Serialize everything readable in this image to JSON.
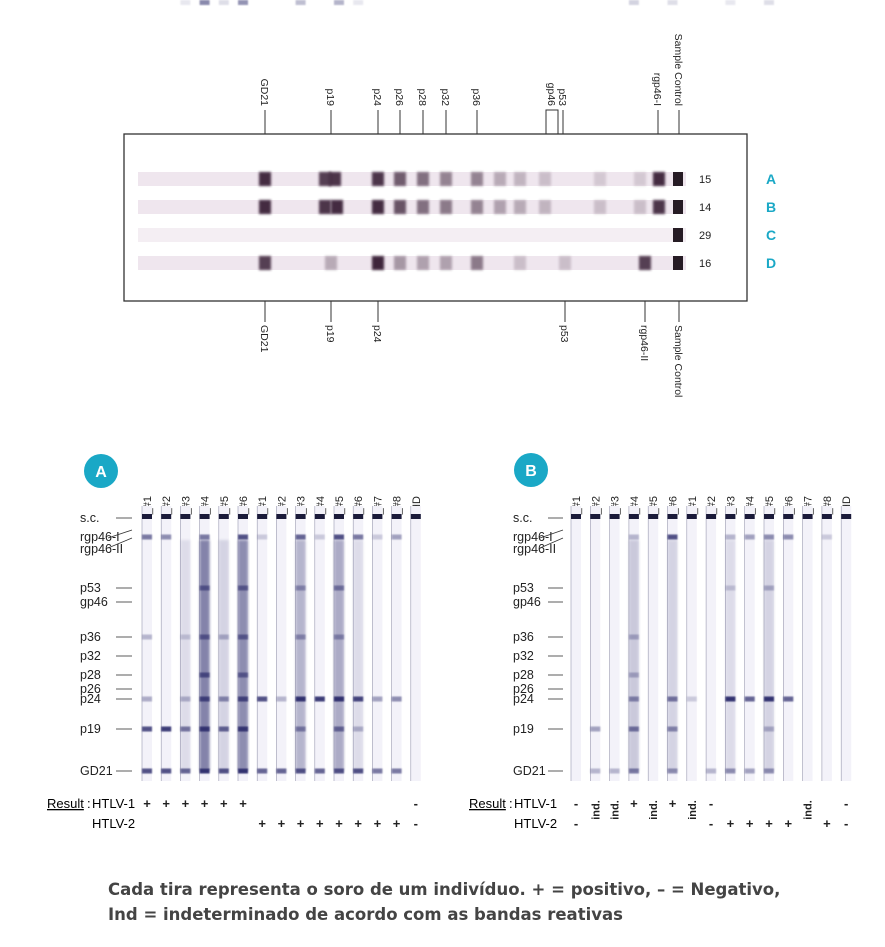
{
  "colors": {
    "accent": "#1aa8c6",
    "band": "#3a2438",
    "band_blue": "#2a2a6a",
    "frame": "#333333",
    "text": "#222222"
  },
  "top_panel": {
    "upper_labels": [
      "GD21",
      "p19",
      "p24",
      "p26",
      "p28",
      "p32",
      "p36",
      "gp46",
      "p53",
      "rgp46-I",
      "Sample Control"
    ],
    "lower_labels": [
      "GD21",
      "p19",
      "p24",
      "p53",
      "rgp46-II",
      "Sample Control"
    ],
    "strips": [
      {
        "letter": "A",
        "number": "15"
      },
      {
        "letter": "B",
        "number": "14"
      },
      {
        "letter": "C",
        "number": "29"
      },
      {
        "letter": "D",
        "number": "16"
      }
    ]
  },
  "blot_a": {
    "badge": "A",
    "lanes": [
      {
        "label": "H1_#1",
        "htlv1": "+",
        "htlv2": ""
      },
      {
        "label": "H1_#2",
        "htlv1": "+",
        "htlv2": ""
      },
      {
        "label": "H1_#3",
        "htlv1": "+",
        "htlv2": ""
      },
      {
        "label": "H1_#4",
        "htlv1": "+",
        "htlv2": ""
      },
      {
        "label": "H1_#5",
        "htlv1": "+",
        "htlv2": ""
      },
      {
        "label": "H1_#6",
        "htlv1": "+",
        "htlv2": ""
      },
      {
        "label": "H2_#1",
        "htlv1": "",
        "htlv2": "+"
      },
      {
        "label": "H2_#2",
        "htlv1": "",
        "htlv2": "+"
      },
      {
        "label": "H2_#3",
        "htlv1": "",
        "htlv2": "+"
      },
      {
        "label": "H2_#4",
        "htlv1": "",
        "htlv2": "+"
      },
      {
        "label": "H2_#5",
        "htlv1": "",
        "htlv2": "+"
      },
      {
        "label": "H2_#6",
        "htlv1": "",
        "htlv2": "+"
      },
      {
        "label": "H2_#7",
        "htlv1": "",
        "htlv2": "+"
      },
      {
        "label": "H2_#8",
        "htlv1": "",
        "htlv2": "+"
      },
      {
        "label": "HD",
        "htlv1": "-",
        "htlv2": "-"
      }
    ]
  },
  "blot_b": {
    "badge": "B",
    "lanes": [
      {
        "label": "H1_#1",
        "htlv1": "-",
        "htlv2": "-"
      },
      {
        "label": "H1_#2",
        "htlv1": "ind.",
        "htlv2": ""
      },
      {
        "label": "H1_#3",
        "htlv1": "ind.",
        "htlv2": ""
      },
      {
        "label": "H1_#4",
        "htlv1": "+",
        "htlv2": ""
      },
      {
        "label": "H1_#5",
        "htlv1": "ind.",
        "htlv2": ""
      },
      {
        "label": "H1_#6",
        "htlv1": "+",
        "htlv2": ""
      },
      {
        "label": "H2_#1",
        "htlv1": "ind.",
        "htlv2": ""
      },
      {
        "label": "H2_#2",
        "htlv1": "-",
        "htlv2": "-"
      },
      {
        "label": "H2_#3",
        "htlv1": "",
        "htlv2": "+"
      },
      {
        "label": "H2_#4",
        "htlv1": "",
        "htlv2": "+"
      },
      {
        "label": "H2_#5",
        "htlv1": "",
        "htlv2": "+"
      },
      {
        "label": "H2_#6",
        "htlv1": "",
        "htlv2": "+"
      },
      {
        "label": "H2_#7",
        "htlv1": "ind.",
        "htlv2": ""
      },
      {
        "label": "H2_#8",
        "htlv1": "",
        "htlv2": "+"
      },
      {
        "label": "HD",
        "htlv1": "-",
        "htlv2": "-"
      }
    ]
  },
  "band_labels": [
    "s.c.",
    "rgp46-I",
    "rgp46-II",
    "p53",
    "gp46",
    "p36",
    "p32",
    "p28",
    "p26",
    "p24",
    "p19",
    "GD21"
  ],
  "result": {
    "label": "Result",
    "htlv1": "HTLV-1",
    "htlv2": "HTLV-2"
  },
  "caption": {
    "line1": "Cada tira representa o soro de um indivíduo. + = positivo, – = Negativo,",
    "line2": "Ind = indeterminado de acordo com as bandas reativas"
  }
}
